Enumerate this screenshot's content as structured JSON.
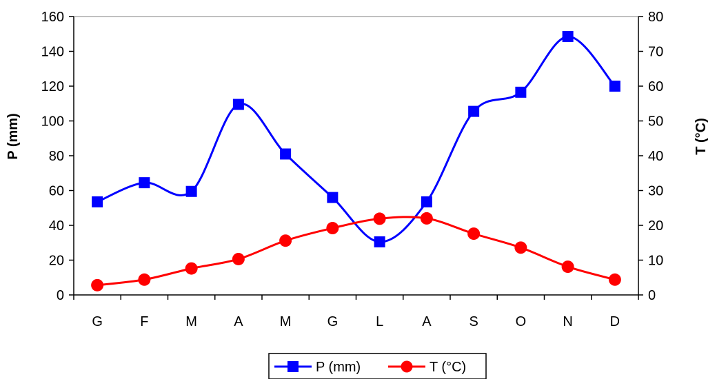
{
  "chart_data": {
    "type": "line",
    "categories": [
      "G",
      "F",
      "M",
      "A",
      "M",
      "G",
      "L",
      "A",
      "S",
      "O",
      "N",
      "D"
    ],
    "series": [
      {
        "name": "P (mm)",
        "axis": "left",
        "color": "#0000FF",
        "marker": "square",
        "values": [
          53.5,
          64.5,
          59.5,
          109.5,
          81,
          56,
          30.5,
          53.5,
          105.5,
          116.5,
          148.5,
          120
        ]
      },
      {
        "name": "T (°C)",
        "axis": "right",
        "color": "#FF0000",
        "marker": "circle",
        "values": [
          2.8,
          4.4,
          7.6,
          10.3,
          15.6,
          19.2,
          21.9,
          22,
          17.6,
          13.6,
          8.1,
          4.4
        ]
      }
    ],
    "ylabel": "P (mm)",
    "y2label": "T (°C)",
    "ylim": [
      0,
      160
    ],
    "y2lim": [
      0,
      80
    ],
    "yticks": [
      "0",
      "20",
      "40",
      "60",
      "80",
      "100",
      "120",
      "140",
      "160"
    ],
    "y2ticks": [
      "0",
      "10",
      "20",
      "30",
      "40",
      "50",
      "60",
      "70",
      "80"
    ],
    "grid": false,
    "legend_position": "bottom-center"
  }
}
